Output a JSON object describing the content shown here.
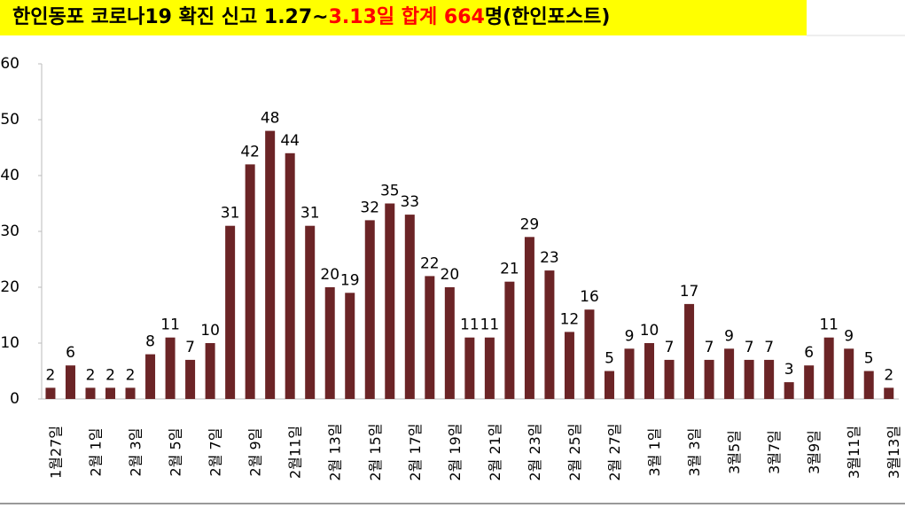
{
  "chart_data": {
    "type": "bar",
    "title": [
      {
        "text": "한인동포 코로나19 확진 신고 1.27~",
        "color": "#000000"
      },
      {
        "text": "3.13일 합계 664",
        "color": "#ff0000"
      },
      {
        "text": "명(한인포스트)",
        "color": "#000000"
      }
    ],
    "title_background": "#ffff00",
    "categories": [
      "1월27일",
      null,
      "2월 1일",
      null,
      "2월 3일",
      null,
      "2월 5일",
      null,
      "2월 7일",
      null,
      "2월 9일",
      null,
      "2월11일",
      null,
      "2월 13일",
      null,
      "2월 15일",
      null,
      "2월 17일",
      null,
      "2월 19일",
      null,
      "2월 21일",
      null,
      "2월 23일",
      null,
      "2월 25일",
      null,
      "2월 27일",
      null,
      "3월 1일",
      null,
      "3월 3일",
      null,
      "3월5일",
      null,
      "3월7일",
      null,
      "3월9일",
      null,
      "3월11일",
      null,
      "3월13일"
    ],
    "values": [
      2,
      6,
      2,
      2,
      2,
      8,
      11,
      7,
      10,
      31,
      42,
      48,
      44,
      31,
      20,
      19,
      32,
      35,
      33,
      22,
      20,
      11,
      11,
      21,
      29,
      23,
      12,
      16,
      5,
      9,
      10,
      7,
      17,
      7,
      9,
      7,
      7,
      3,
      6,
      11,
      9,
      5,
      2
    ],
    "color": "#6b2426",
    "ylim": [
      0,
      60
    ],
    "yticks": [
      0,
      10,
      20,
      30,
      40,
      50,
      60
    ],
    "grid": false
  }
}
